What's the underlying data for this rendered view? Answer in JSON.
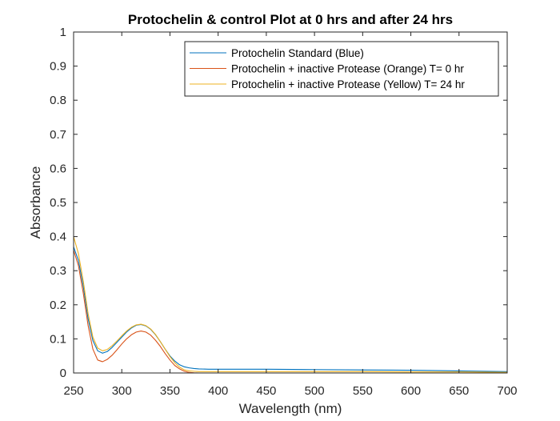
{
  "chart_data": {
    "type": "line",
    "title": "Protochelin & control Plot at 0 hrs and after 24 hrs",
    "xlabel": "Wavelength (nm)",
    "ylabel": "Absorbance",
    "xlim": [
      250,
      700
    ],
    "ylim": [
      0,
      1
    ],
    "x_ticks": [
      250,
      300,
      350,
      400,
      450,
      500,
      550,
      600,
      650,
      700
    ],
    "x_tick_labels": [
      "250",
      "300",
      "350",
      "400",
      "450",
      "500",
      "550",
      "600",
      "650",
      "700"
    ],
    "y_ticks": [
      0,
      0.1,
      0.2,
      0.3,
      0.4,
      0.5,
      0.6,
      0.7,
      0.8,
      0.9,
      1
    ],
    "y_tick_labels": [
      "0",
      "0.1",
      "0.2",
      "0.3",
      "0.4",
      "0.5",
      "0.6",
      "0.7",
      "0.8",
      "0.9",
      "1"
    ],
    "grid": false,
    "legend_position": "top-right",
    "series": [
      {
        "name": "Protochelin Standard (Blue)",
        "color": "#0072BD",
        "x": [
          250,
          255,
          260,
          265,
          270,
          275,
          280,
          285,
          290,
          295,
          300,
          305,
          310,
          315,
          320,
          325,
          330,
          335,
          340,
          345,
          350,
          355,
          360,
          365,
          370,
          375,
          380,
          390,
          400,
          420,
          450,
          500,
          550,
          600,
          650,
          700
        ],
        "y": [
          0.37,
          0.33,
          0.255,
          0.16,
          0.095,
          0.065,
          0.058,
          0.063,
          0.075,
          0.09,
          0.105,
          0.12,
          0.132,
          0.14,
          0.142,
          0.138,
          0.128,
          0.112,
          0.092,
          0.07,
          0.05,
          0.035,
          0.024,
          0.018,
          0.015,
          0.013,
          0.012,
          0.011,
          0.011,
          0.011,
          0.011,
          0.01,
          0.009,
          0.008,
          0.006,
          0.004
        ]
      },
      {
        "name": "Protochelin + inactive Protease (Orange) T= 0 hr",
        "color": "#D95319",
        "x": [
          250,
          255,
          260,
          265,
          270,
          275,
          280,
          285,
          290,
          295,
          300,
          305,
          310,
          315,
          320,
          325,
          330,
          335,
          340,
          345,
          350,
          355,
          360,
          365,
          370,
          375,
          380,
          390,
          400,
          450,
          500,
          550,
          600,
          650,
          700
        ],
        "y": [
          0.36,
          0.315,
          0.235,
          0.14,
          0.07,
          0.038,
          0.033,
          0.04,
          0.052,
          0.068,
          0.085,
          0.1,
          0.112,
          0.12,
          0.123,
          0.12,
          0.111,
          0.096,
          0.078,
          0.057,
          0.038,
          0.022,
          0.012,
          0.005,
          0.0015,
          0.0005,
          0,
          0,
          0,
          0,
          0,
          0,
          0,
          0,
          0
        ]
      },
      {
        "name": "Protochelin + inactive Protease (Yellow) T= 24 hr",
        "color": "#EDB120",
        "x": [
          250,
          255,
          260,
          265,
          270,
          275,
          280,
          285,
          290,
          295,
          300,
          305,
          310,
          315,
          320,
          325,
          330,
          335,
          340,
          345,
          350,
          355,
          360,
          365,
          370,
          375,
          380,
          390,
          400,
          450,
          500,
          550,
          600,
          650,
          700
        ],
        "y": [
          0.4,
          0.35,
          0.27,
          0.175,
          0.105,
          0.073,
          0.065,
          0.069,
          0.08,
          0.094,
          0.109,
          0.123,
          0.134,
          0.141,
          0.143,
          0.139,
          0.129,
          0.113,
          0.092,
          0.07,
          0.048,
          0.03,
          0.017,
          0.009,
          0.006,
          0.005,
          0.004,
          0.004,
          0.004,
          0.004,
          0.004,
          0.004,
          0.003,
          0.003,
          0.002
        ]
      }
    ]
  }
}
